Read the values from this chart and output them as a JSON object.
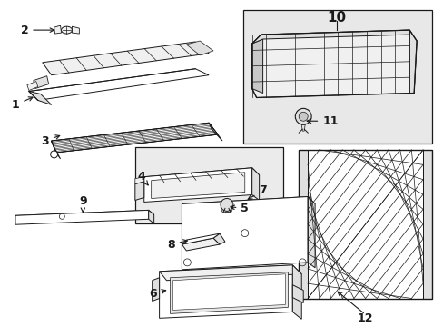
{
  "bg_color": "#ffffff",
  "line_color": "#1a1a1a",
  "fill_white": "#ffffff",
  "fill_light": "#f0f0f0",
  "fill_mid": "#e0e0e0",
  "fill_dark": "#c8c8c8",
  "box_fill": "#e8e8e8",
  "font_size": 9,
  "font_size_large": 11
}
